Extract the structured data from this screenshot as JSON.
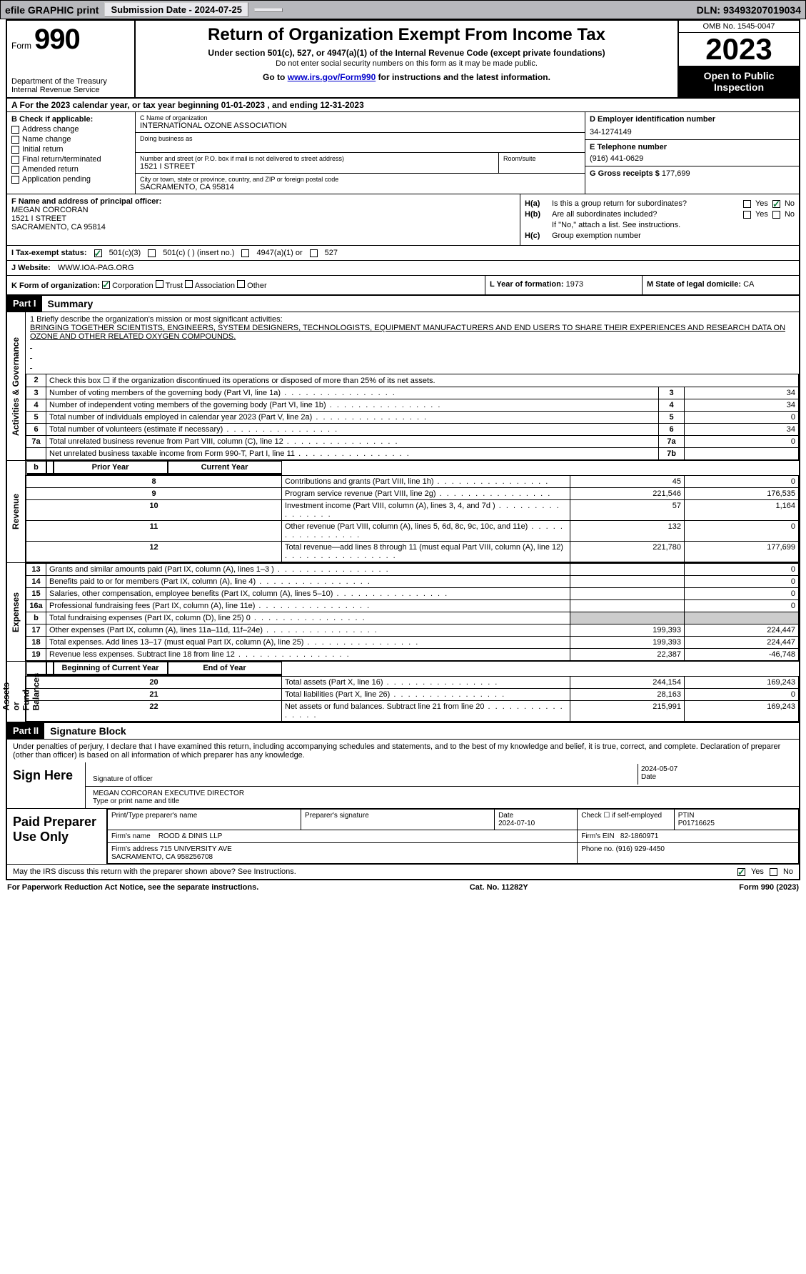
{
  "topbar": {
    "efile": "efile GRAPHIC print",
    "submission_label": "Submission Date - 2024-07-25",
    "dln": "DLN: 93493207019034"
  },
  "header": {
    "form_word": "Form",
    "form_num": "990",
    "dept": "Department of the Treasury\nInternal Revenue Service",
    "title": "Return of Organization Exempt From Income Tax",
    "sub": "Under section 501(c), 527, or 4947(a)(1) of the Internal Revenue Code (except private foundations)",
    "sub2": "Do not enter social security numbers on this form as it may be made public.",
    "sub3_pre": "Go to ",
    "sub3_link": "www.irs.gov/Form990",
    "sub3_post": " for instructions and the latest information.",
    "omb": "OMB No. 1545-0047",
    "year": "2023",
    "open": "Open to Public Inspection"
  },
  "row_a": "A  For the 2023 calendar year, or tax year beginning 01-01-2023    , and ending 12-31-2023",
  "box_b": {
    "label": "B Check if applicable:",
    "items": [
      "Address change",
      "Name change",
      "Initial return",
      "Final return/terminated",
      "Amended return",
      "Application pending"
    ]
  },
  "box_c": {
    "name_lbl": "C Name of organization",
    "name": "INTERNATIONAL OZONE ASSOCIATION",
    "dba_lbl": "Doing business as",
    "dba": "",
    "street_lbl": "Number and street (or P.O. box if mail is not delivered to street address)",
    "street": "1521 I STREET",
    "room_lbl": "Room/suite",
    "room": "",
    "city_lbl": "City or town, state or province, country, and ZIP or foreign postal code",
    "city": "SACRAMENTO, CA  95814"
  },
  "box_d": {
    "lbl": "D Employer identification number",
    "val": "34-1274149"
  },
  "box_e": {
    "lbl": "E Telephone number",
    "val": "(916) 441-0629"
  },
  "box_g": {
    "lbl": "G Gross receipts $",
    "val": "177,699"
  },
  "box_f": {
    "lbl": "F  Name and address of principal officer:",
    "name": "MEGAN CORCORAN",
    "street": "1521 I STREET",
    "city": "SACRAMENTO, CA  95814"
  },
  "box_h": {
    "a_lbl": "H(a)",
    "a_txt": "Is this a group return for subordinates?",
    "b_lbl": "H(b)",
    "b_txt": "Are all subordinates included?",
    "b_note": "If \"No,\" attach a list. See instructions.",
    "c_lbl": "H(c)",
    "c_txt": "Group exemption number",
    "yes": "Yes",
    "no": "No"
  },
  "row_i": {
    "lbl": "I   Tax-exempt status:",
    "o1": "501(c)(3)",
    "o2": "501(c) (  ) (insert no.)",
    "o3": "4947(a)(1) or",
    "o4": "527"
  },
  "row_j": {
    "lbl": "J   Website:",
    "val": "WWW.IOA-PAG.ORG"
  },
  "row_k": {
    "lbl": "K Form of organization:",
    "o1": "Corporation",
    "o2": "Trust",
    "o3": "Association",
    "o4": "Other"
  },
  "row_l": {
    "lbl": "L Year of formation:",
    "val": "1973"
  },
  "row_m": {
    "lbl": "M State of legal domicile:",
    "val": "CA"
  },
  "part1": {
    "num": "Part I",
    "title": "Summary"
  },
  "mission": {
    "lbl": "1   Briefly describe the organization's mission or most significant activities:",
    "txt": "BRINGING TOGETHER SCIENTISTS, ENGINEERS, SYSTEM DESIGNERS, TECHNOLOGISTS, EQUIPMENT MANUFACTURERS AND END USERS TO SHARE THEIR EXPERIENCES AND RESEARCH DATA ON OZONE AND OTHER RELATED OXYGEN COMPOUNDS."
  },
  "gov_lines": [
    {
      "n": "2",
      "t": "Check this box ☐ if the organization discontinued its operations or disposed of more than 25% of its net assets.",
      "box": "",
      "v": ""
    },
    {
      "n": "3",
      "t": "Number of voting members of the governing body (Part VI, line 1a)",
      "box": "3",
      "v": "34"
    },
    {
      "n": "4",
      "t": "Number of independent voting members of the governing body (Part VI, line 1b)",
      "box": "4",
      "v": "34"
    },
    {
      "n": "5",
      "t": "Total number of individuals employed in calendar year 2023 (Part V, line 2a)",
      "box": "5",
      "v": "0"
    },
    {
      "n": "6",
      "t": "Total number of volunteers (estimate if necessary)",
      "box": "6",
      "v": "34"
    },
    {
      "n": "7a",
      "t": "Total unrelated business revenue from Part VIII, column (C), line 12",
      "box": "7a",
      "v": "0"
    },
    {
      "n": "",
      "t": "Net unrelated business taxable income from Form 990-T, Part I, line 11",
      "box": "7b",
      "v": ""
    }
  ],
  "rev_hdr": {
    "b": "b",
    "py": "Prior Year",
    "cy": "Current Year"
  },
  "rev_lines": [
    {
      "n": "8",
      "t": "Contributions and grants (Part VIII, line 1h)",
      "py": "45",
      "cy": "0"
    },
    {
      "n": "9",
      "t": "Program service revenue (Part VIII, line 2g)",
      "py": "221,546",
      "cy": "176,535"
    },
    {
      "n": "10",
      "t": "Investment income (Part VIII, column (A), lines 3, 4, and 7d )",
      "py": "57",
      "cy": "1,164"
    },
    {
      "n": "11",
      "t": "Other revenue (Part VIII, column (A), lines 5, 6d, 8c, 9c, 10c, and 11e)",
      "py": "132",
      "cy": "0"
    },
    {
      "n": "12",
      "t": "Total revenue—add lines 8 through 11 (must equal Part VIII, column (A), line 12)",
      "py": "221,780",
      "cy": "177,699"
    }
  ],
  "exp_lines": [
    {
      "n": "13",
      "t": "Grants and similar amounts paid (Part IX, column (A), lines 1–3 )",
      "py": "",
      "cy": "0"
    },
    {
      "n": "14",
      "t": "Benefits paid to or for members (Part IX, column (A), line 4)",
      "py": "",
      "cy": "0"
    },
    {
      "n": "15",
      "t": "Salaries, other compensation, employee benefits (Part IX, column (A), lines 5–10)",
      "py": "",
      "cy": "0"
    },
    {
      "n": "16a",
      "t": "Professional fundraising fees (Part IX, column (A), line 11e)",
      "py": "",
      "cy": "0"
    },
    {
      "n": "b",
      "t": "Total fundraising expenses (Part IX, column (D), line 25) 0",
      "py": "gray",
      "cy": "gray"
    },
    {
      "n": "17",
      "t": "Other expenses (Part IX, column (A), lines 11a–11d, 11f–24e)",
      "py": "199,393",
      "cy": "224,447"
    },
    {
      "n": "18",
      "t": "Total expenses. Add lines 13–17 (must equal Part IX, column (A), line 25)",
      "py": "199,393",
      "cy": "224,447"
    },
    {
      "n": "19",
      "t": "Revenue less expenses. Subtract line 18 from line 12",
      "py": "22,387",
      "cy": "-46,748"
    }
  ],
  "na_hdr": {
    "py": "Beginning of Current Year",
    "cy": "End of Year"
  },
  "na_lines": [
    {
      "n": "20",
      "t": "Total assets (Part X, line 16)",
      "py": "244,154",
      "cy": "169,243"
    },
    {
      "n": "21",
      "t": "Total liabilities (Part X, line 26)",
      "py": "28,163",
      "cy": "0"
    },
    {
      "n": "22",
      "t": "Net assets or fund balances. Subtract line 21 from line 20",
      "py": "215,991",
      "cy": "169,243"
    }
  ],
  "side": {
    "gov": "Activities & Governance",
    "rev": "Revenue",
    "exp": "Expenses",
    "na": "Net Assets or\nFund Balances"
  },
  "part2": {
    "num": "Part II",
    "title": "Signature Block"
  },
  "decl": "Under penalties of perjury, I declare that I have examined this return, including accompanying schedules and statements, and to the best of my knowledge and belief, it is true, correct, and complete. Declaration of preparer (other than officer) is based on all information of which preparer has any knowledge.",
  "sign": {
    "here": "Sign Here",
    "sig_lbl": "Signature of officer",
    "name": "MEGAN CORCORAN  EXECUTIVE DIRECTOR",
    "name_lbl": "Type or print name and title",
    "date_lbl": "Date",
    "date": "2024-05-07"
  },
  "paid": {
    "title": "Paid Preparer Use Only",
    "ptp": "Print/Type preparer's name",
    "sig": "Preparer's signature",
    "date_lbl": "Date",
    "date": "2024-07-10",
    "chk": "Check ☐ if self-employed",
    "ptin_lbl": "PTIN",
    "ptin": "P01716625",
    "firm_name_lbl": "Firm's name",
    "firm_name": "ROOD & DINIS LLP",
    "firm_ein_lbl": "Firm's EIN",
    "firm_ein": "82-1860971",
    "firm_addr_lbl": "Firm's address",
    "firm_addr": "715 UNIVERSITY AVE\nSACRAMENTO, CA  958256708",
    "phone_lbl": "Phone no.",
    "phone": "(916) 929-4450"
  },
  "irs_discuss": {
    "t": "May the IRS discuss this return with the preparer shown above? See Instructions.",
    "yes": "Yes",
    "no": "No"
  },
  "footer": {
    "l": "For Paperwork Reduction Act Notice, see the separate instructions.",
    "c": "Cat. No. 11282Y",
    "r": "Form 990 (2023)"
  }
}
